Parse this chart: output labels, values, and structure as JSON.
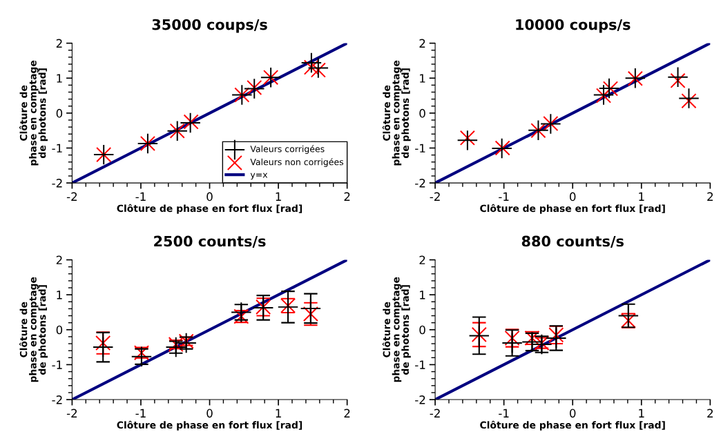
{
  "chart_data": [
    {
      "type": "scatter",
      "title": "35000 coups/s",
      "xlabel": "Clôture de phase en fort flux [rad]",
      "ylabel": "Clôture de\nphase en comptage\nde photons [rad]",
      "xlim": [
        -2,
        2
      ],
      "ylim": [
        -2,
        2
      ],
      "xticks": [
        -2,
        -1,
        0,
        1,
        2
      ],
      "yticks": [
        -2,
        -1,
        0,
        1,
        2
      ],
      "grid": false,
      "legend": "bottom right",
      "series": [
        {
          "name": "Valeurs corrigées",
          "color": "#000000",
          "marker": "cross",
          "x": [
            -1.54,
            -0.9,
            -0.47,
            -0.28,
            0.47,
            0.65,
            0.89,
            1.48,
            1.58
          ],
          "values": [
            -1.19,
            -0.87,
            -0.51,
            -0.28,
            0.52,
            0.7,
            1.02,
            1.44,
            1.29
          ]
        },
        {
          "name": "Valeurs non corrigées",
          "color": "#ff0000",
          "marker": "cross",
          "x": [
            -1.54,
            -0.9,
            -0.47,
            -0.27,
            0.47,
            0.65,
            0.89,
            1.48,
            1.58
          ],
          "values": [
            -1.19,
            -0.87,
            -0.51,
            -0.25,
            0.52,
            0.73,
            1.02,
            1.31,
            1.23
          ]
        },
        {
          "name": "y=x",
          "type": "line",
          "color": "#000080",
          "line_style": "solid",
          "x": [
            -2,
            2
          ],
          "values": [
            -2,
            2
          ]
        }
      ]
    },
    {
      "type": "scatter",
      "title": "10000 coups/s",
      "xlabel": "Clôture de phase en fort flux [rad]",
      "ylabel": "Clôture de\nphase en comptage\nde photons [rad]",
      "xlim": [
        -2,
        2
      ],
      "ylim": [
        -2,
        2
      ],
      "xticks": [
        -2,
        -1,
        0,
        1,
        2
      ],
      "yticks": [
        -2,
        -1,
        0,
        1,
        2
      ],
      "grid": false,
      "series": [
        {
          "color": "#000000",
          "marker": "cross",
          "x": [
            -1.53,
            -1.03,
            -0.5,
            -0.32,
            0.45,
            0.53,
            0.91,
            1.53,
            1.69
          ],
          "values": [
            -0.78,
            -1.01,
            -0.49,
            -0.31,
            0.52,
            0.71,
            1.0,
            1.03,
            0.42
          ]
        },
        {
          "color": "#ff0000",
          "marker": "cross",
          "x": [
            -1.53,
            -1.02,
            -0.5,
            -0.32,
            0.45,
            0.55,
            0.91,
            1.53,
            1.69
          ],
          "values": [
            -0.71,
            -1.0,
            -0.5,
            -0.3,
            0.5,
            0.7,
            0.99,
            0.93,
            0.35
          ]
        },
        {
          "type": "line",
          "color": "#000080",
          "line_style": "solid",
          "x": [
            -2,
            2
          ],
          "values": [
            -2,
            2
          ]
        }
      ]
    },
    {
      "type": "scatter",
      "title": "2500 counts/s",
      "xlabel": "Clôture de phase en fort flux [rad]",
      "ylabel": "Clôture de\nphase en comptage\nde photons [rad]",
      "xlim": [
        -2,
        2
      ],
      "ylim": [
        -2,
        2
      ],
      "xticks": [
        -2,
        -1,
        0,
        1,
        2
      ],
      "yticks": [
        -2,
        -1,
        0,
        1,
        2
      ],
      "grid": false,
      "series": [
        {
          "color": "#000000",
          "marker": "cross",
          "x": [
            -1.55,
            -0.99,
            -0.49,
            -0.34,
            0.46,
            0.78,
            1.14,
            1.47
          ],
          "values": [
            -0.5,
            -0.77,
            -0.5,
            -0.38,
            0.5,
            0.63,
            0.65,
            0.61
          ],
          "errors": [
            0.42,
            0.22,
            0.17,
            0.17,
            0.22,
            0.35,
            0.45,
            0.42
          ]
        },
        {
          "color": "#ff0000",
          "marker": "cross",
          "x": [
            -1.55,
            -0.99,
            -0.49,
            -0.34,
            0.46,
            0.78,
            1.14,
            1.47
          ],
          "values": [
            -0.38,
            -0.66,
            -0.42,
            -0.33,
            0.38,
            0.65,
            0.69,
            0.45
          ],
          "errors": [
            0.31,
            0.15,
            0.12,
            0.12,
            0.17,
            0.25,
            0.2,
            0.32
          ]
        },
        {
          "type": "line",
          "color": "#000080",
          "line_style": "solid",
          "x": [
            -2,
            2
          ],
          "values": [
            -2,
            2
          ]
        }
      ]
    },
    {
      "type": "scatter",
      "title": "880 counts/s",
      "xlabel": "Clôture de phase en fort flux [rad]",
      "ylabel": "Clôture de\nphase en comptage\nde photons [rad]",
      "xlim": [
        -2,
        2
      ],
      "ylim": [
        -2,
        2
      ],
      "xticks": [
        -2,
        -1,
        0,
        1,
        2
      ],
      "yticks": [
        -2,
        -1,
        0,
        1,
        2
      ],
      "grid": false,
      "series": [
        {
          "color": "#000000",
          "marker": "cross",
          "x": [
            -1.36,
            -0.88,
            -0.59,
            -0.45,
            -0.24,
            0.81
          ],
          "values": [
            -0.17,
            -0.38,
            -0.35,
            -0.42,
            -0.24,
            0.4
          ],
          "errors": [
            0.53,
            0.37,
            0.25,
            0.23,
            0.35,
            0.33
          ]
        },
        {
          "color": "#ff0000",
          "marker": "cross",
          "x": [
            -1.36,
            -0.88,
            -0.59,
            -0.45,
            -0.24,
            0.81
          ],
          "values": [
            -0.14,
            -0.24,
            -0.24,
            -0.38,
            -0.15,
            0.26
          ],
          "errors": [
            0.34,
            0.25,
            0.18,
            0.15,
            0.25,
            0.2
          ]
        },
        {
          "type": "line",
          "color": "#000080",
          "line_style": "solid",
          "x": [
            -2,
            2
          ],
          "values": [
            -2,
            2
          ]
        }
      ]
    }
  ]
}
